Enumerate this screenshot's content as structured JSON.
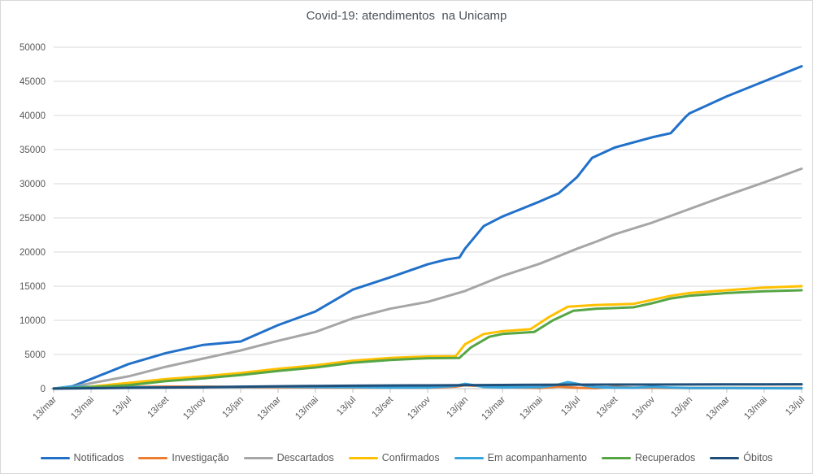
{
  "chart_data": {
    "type": "line",
    "title": "Covid-19: atendimentos  na Unicamp",
    "xlabel": "",
    "ylabel": "",
    "ylim": [
      0,
      50000
    ],
    "y_tick_step": 5000,
    "y_tick_labels": [
      "0",
      "5000",
      "10000",
      "15000",
      "20000",
      "25000",
      "30000",
      "35000",
      "40000",
      "45000",
      "50000"
    ],
    "x_tick_labels": [
      "13/mar",
      "13/mai",
      "13/jul",
      "13/set",
      "13/nov",
      "13/jan",
      "13/mar",
      "13/mai",
      "13/jul",
      "13/set",
      "13/nov",
      "13/jan",
      "13/mar",
      "13/mai",
      "13/jul",
      "13/set",
      "13/nov",
      "13/jan",
      "13/mar",
      "13/mai",
      "13/jul"
    ],
    "x_months_per_tick": 2,
    "x_total_months": 40,
    "grid": true,
    "legend_position": "bottom",
    "series": [
      {
        "name": "Notificados",
        "color": "#2170c9",
        "points": [
          [
            0,
            0
          ],
          [
            1,
            350
          ],
          [
            2,
            1400
          ],
          [
            4,
            3600
          ],
          [
            6,
            5200
          ],
          [
            8,
            6400
          ],
          [
            10,
            6900
          ],
          [
            12,
            9300
          ],
          [
            14,
            11300
          ],
          [
            16,
            14500
          ],
          [
            18,
            16300
          ],
          [
            20,
            18200
          ],
          [
            21,
            18900
          ],
          [
            21.7,
            19200
          ],
          [
            22,
            20500
          ],
          [
            23,
            23800
          ],
          [
            24,
            25200
          ],
          [
            26,
            27400
          ],
          [
            27,
            28600
          ],
          [
            28,
            31000
          ],
          [
            28.8,
            33800
          ],
          [
            30,
            35300
          ],
          [
            32,
            36800
          ],
          [
            33,
            37400
          ],
          [
            33.8,
            39800
          ],
          [
            34,
            40300
          ],
          [
            36,
            42800
          ],
          [
            38,
            45000
          ],
          [
            40,
            47200
          ]
        ]
      },
      {
        "name": "Investigação",
        "color": "#ed7d31",
        "points": [
          [
            0,
            20
          ],
          [
            1,
            200
          ],
          [
            2,
            150
          ],
          [
            4,
            250
          ],
          [
            6,
            300
          ],
          [
            8,
            280
          ],
          [
            10,
            230
          ],
          [
            12,
            200
          ],
          [
            14,
            180
          ],
          [
            16,
            150
          ],
          [
            18,
            140
          ],
          [
            20,
            130
          ],
          [
            21.5,
            300
          ],
          [
            22,
            500
          ],
          [
            23,
            350
          ],
          [
            24,
            200
          ],
          [
            25,
            150
          ],
          [
            26,
            100
          ],
          [
            27,
            300
          ],
          [
            28,
            120
          ],
          [
            29,
            60
          ],
          [
            30,
            250
          ],
          [
            31,
            150
          ],
          [
            32,
            120
          ],
          [
            34,
            100
          ],
          [
            36,
            90
          ],
          [
            38,
            80
          ],
          [
            40,
            90
          ]
        ]
      },
      {
        "name": "Descartados",
        "color": "#a6a6a6",
        "points": [
          [
            0,
            0
          ],
          [
            1,
            250
          ],
          [
            2,
            800
          ],
          [
            4,
            1800
          ],
          [
            6,
            3200
          ],
          [
            8,
            4400
          ],
          [
            10,
            5600
          ],
          [
            12,
            7000
          ],
          [
            14,
            8300
          ],
          [
            16,
            10300
          ],
          [
            18,
            11700
          ],
          [
            20,
            12700
          ],
          [
            22,
            14300
          ],
          [
            24,
            16500
          ],
          [
            26,
            18300
          ],
          [
            28,
            20500
          ],
          [
            29,
            21500
          ],
          [
            30,
            22600
          ],
          [
            32,
            24300
          ],
          [
            34,
            26300
          ],
          [
            36,
            28300
          ],
          [
            38,
            30200
          ],
          [
            40,
            32200
          ]
        ]
      },
      {
        "name": "Confirmados",
        "color": "#ffc000",
        "points": [
          [
            0,
            0
          ],
          [
            1,
            120
          ],
          [
            2,
            300
          ],
          [
            4,
            830
          ],
          [
            6,
            1400
          ],
          [
            8,
            1800
          ],
          [
            10,
            2300
          ],
          [
            12,
            2900
          ],
          [
            14,
            3400
          ],
          [
            16,
            4100
          ],
          [
            18,
            4500
          ],
          [
            20,
            4700
          ],
          [
            21.5,
            4750
          ],
          [
            22,
            6500
          ],
          [
            23,
            8000
          ],
          [
            24,
            8400
          ],
          [
            25.5,
            8700
          ],
          [
            26.5,
            10500
          ],
          [
            27.5,
            12000
          ],
          [
            29,
            12250
          ],
          [
            31,
            12400
          ],
          [
            32,
            13000
          ],
          [
            33,
            13600
          ],
          [
            34,
            14000
          ],
          [
            36,
            14400
          ],
          [
            38,
            14800
          ],
          [
            40,
            15000
          ]
        ]
      },
      {
        "name": "Em acompanhamento",
        "color": "#38a4dc",
        "points": [
          [
            0,
            10
          ],
          [
            1,
            300
          ],
          [
            2,
            250
          ],
          [
            4,
            200
          ],
          [
            6,
            180
          ],
          [
            8,
            200
          ],
          [
            10,
            250
          ],
          [
            12,
            280
          ],
          [
            14,
            230
          ],
          [
            16,
            200
          ],
          [
            18,
            160
          ],
          [
            20,
            150
          ],
          [
            21.5,
            400
          ],
          [
            22,
            700
          ],
          [
            22.5,
            500
          ],
          [
            23,
            250
          ],
          [
            24,
            180
          ],
          [
            26,
            200
          ],
          [
            27,
            600
          ],
          [
            27.5,
            950
          ],
          [
            28,
            700
          ],
          [
            28.5,
            400
          ],
          [
            29,
            200
          ],
          [
            30,
            150
          ],
          [
            31,
            120
          ],
          [
            32,
            250
          ],
          [
            33,
            150
          ],
          [
            34,
            100
          ],
          [
            36,
            80
          ],
          [
            38,
            60
          ],
          [
            40,
            50
          ]
        ]
      },
      {
        "name": "Recuperados",
        "color": "#57a646",
        "points": [
          [
            0,
            0
          ],
          [
            1,
            80
          ],
          [
            2,
            200
          ],
          [
            4,
            500
          ],
          [
            6,
            1100
          ],
          [
            8,
            1500
          ],
          [
            10,
            2000
          ],
          [
            12,
            2600
          ],
          [
            14,
            3100
          ],
          [
            16,
            3800
          ],
          [
            18,
            4200
          ],
          [
            20,
            4450
          ],
          [
            21.7,
            4500
          ],
          [
            22.3,
            6000
          ],
          [
            23.3,
            7600
          ],
          [
            24,
            8000
          ],
          [
            25.7,
            8300
          ],
          [
            26.7,
            10000
          ],
          [
            27.8,
            11400
          ],
          [
            29,
            11700
          ],
          [
            31,
            11900
          ],
          [
            32,
            12500
          ],
          [
            33,
            13200
          ],
          [
            34,
            13600
          ],
          [
            36,
            14000
          ],
          [
            38,
            14250
          ],
          [
            40,
            14400
          ]
        ]
      },
      {
        "name": "Óbitos",
        "color": "#1f4e79",
        "points": [
          [
            0,
            0
          ],
          [
            2,
            60
          ],
          [
            4,
            120
          ],
          [
            6,
            170
          ],
          [
            8,
            220
          ],
          [
            10,
            280
          ],
          [
            12,
            340
          ],
          [
            14,
            390
          ],
          [
            16,
            430
          ],
          [
            18,
            460
          ],
          [
            20,
            480
          ],
          [
            22,
            510
          ],
          [
            24,
            540
          ],
          [
            26,
            560
          ],
          [
            28,
            580
          ],
          [
            30,
            590
          ],
          [
            32,
            600
          ],
          [
            34,
            610
          ],
          [
            36,
            620
          ],
          [
            38,
            630
          ],
          [
            40,
            640
          ]
        ]
      }
    ]
  },
  "colors": {
    "gridline": "#d9d9d9",
    "axis_line": "#bfbfbf",
    "tick_text": "#595959",
    "title_text": "#4a5158",
    "background": "#ffffff",
    "frame_border": "#d9d9d9"
  }
}
